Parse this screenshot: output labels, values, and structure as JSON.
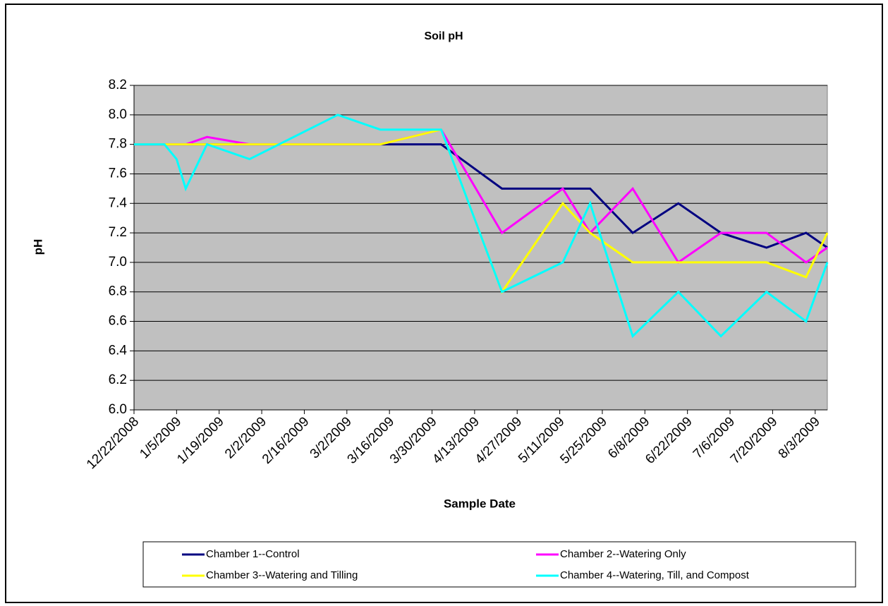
{
  "chart_data": {
    "type": "line",
    "title": "Soil pH",
    "x_label": "Sample Date",
    "y_label": "pH",
    "x": [
      "2008-12-22",
      "2009-01-01",
      "2009-01-05",
      "2009-01-08",
      "2009-01-15",
      "2009-01-29",
      "2009-02-27",
      "2009-03-13",
      "2009-04-02",
      "2009-04-22",
      "2009-05-12",
      "2009-05-21",
      "2009-06-04",
      "2009-06-19",
      "2009-07-03",
      "2009-07-18",
      "2009-07-31",
      "2009-08-07"
    ],
    "series": [
      {
        "name": "Chamber 1--Control",
        "color": "#000080",
        "values": [
          7.8,
          7.8,
          7.8,
          7.8,
          7.8,
          7.8,
          7.8,
          7.8,
          7.8,
          7.5,
          7.5,
          7.5,
          7.2,
          7.4,
          7.2,
          7.1,
          7.2,
          7.1
        ]
      },
      {
        "name": "Chamber 2--Watering Only",
        "color": "#ff00ff",
        "values": [
          7.8,
          7.8,
          7.8,
          7.8,
          7.85,
          7.8,
          7.8,
          7.8,
          7.9,
          7.2,
          7.5,
          7.2,
          7.5,
          7.0,
          7.2,
          7.2,
          7.0,
          7.1
        ]
      },
      {
        "name": "Chamber 3--Watering and Tilling",
        "color": "#ffff00",
        "values": [
          7.8,
          7.8,
          7.8,
          7.8,
          7.8,
          7.8,
          7.8,
          7.8,
          7.9,
          6.8,
          7.4,
          7.2,
          7.0,
          7.0,
          7.0,
          7.0,
          6.9,
          7.2
        ]
      },
      {
        "name": "Chamber 4--Watering, Till, and Compost",
        "color": "#00ffff",
        "values": [
          7.8,
          7.8,
          7.7,
          7.5,
          7.8,
          7.7,
          8.0,
          7.9,
          7.9,
          6.8,
          7.0,
          7.4,
          6.5,
          6.8,
          6.5,
          6.8,
          6.6,
          7.0
        ]
      }
    ],
    "xlim": [
      "2008-12-22",
      "2009-08-07"
    ],
    "xticks": [
      {
        "value": "2008-12-22",
        "label": "12/22/2008"
      },
      {
        "value": "2009-01-05",
        "label": "1/5/2009"
      },
      {
        "value": "2009-01-19",
        "label": "1/19/2009"
      },
      {
        "value": "2009-02-02",
        "label": "2/2/2009"
      },
      {
        "value": "2009-02-16",
        "label": "2/16/2009"
      },
      {
        "value": "2009-03-02",
        "label": "3/2/2009"
      },
      {
        "value": "2009-03-16",
        "label": "3/16/2009"
      },
      {
        "value": "2009-03-30",
        "label": "3/30/2009"
      },
      {
        "value": "2009-04-13",
        "label": "4/13/2009"
      },
      {
        "value": "2009-04-27",
        "label": "4/27/2009"
      },
      {
        "value": "2009-05-11",
        "label": "5/11/2009"
      },
      {
        "value": "2009-05-25",
        "label": "5/25/2009"
      },
      {
        "value": "2009-06-08",
        "label": "6/8/2009"
      },
      {
        "value": "2009-06-22",
        "label": "6/22/2009"
      },
      {
        "value": "2009-07-06",
        "label": "7/6/2009"
      },
      {
        "value": "2009-07-20",
        "label": "7/20/2009"
      },
      {
        "value": "2009-08-03",
        "label": "8/3/2009"
      }
    ],
    "ylim": [
      6.0,
      8.2
    ],
    "yticks": [
      {
        "value": 6.0,
        "label": "6.0"
      },
      {
        "value": 6.2,
        "label": "6.2"
      },
      {
        "value": 6.4,
        "label": "6.4"
      },
      {
        "value": 6.6,
        "label": "6.6"
      },
      {
        "value": 6.8,
        "label": "6.8"
      },
      {
        "value": 7.0,
        "label": "7.0"
      },
      {
        "value": 7.2,
        "label": "7.2"
      },
      {
        "value": 7.4,
        "label": "7.4"
      },
      {
        "value": 7.6,
        "label": "7.6"
      },
      {
        "value": 7.8,
        "label": "7.8"
      },
      {
        "value": 8.0,
        "label": "8.0"
      },
      {
        "value": 8.2,
        "label": "8.2"
      }
    ],
    "grid": true
  }
}
